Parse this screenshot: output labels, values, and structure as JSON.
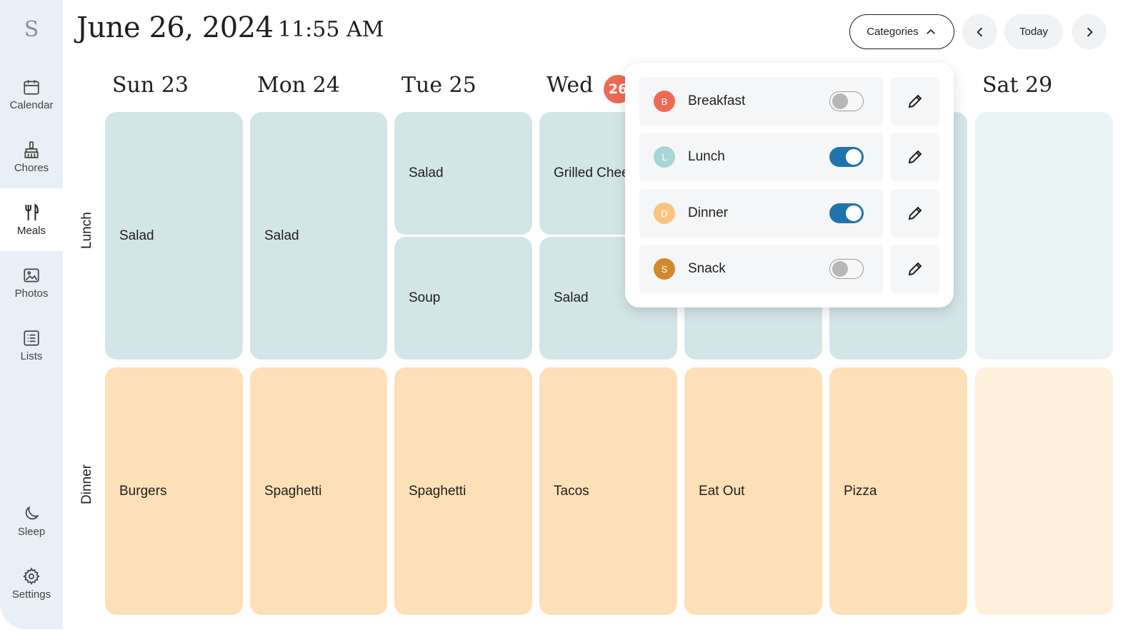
{
  "sidebar": {
    "logo": "S",
    "items": [
      {
        "label": "Calendar",
        "icon": "calendar-icon"
      },
      {
        "label": "Chores",
        "icon": "broom-icon"
      },
      {
        "label": "Meals",
        "icon": "fork-knife-icon",
        "active": true
      },
      {
        "label": "Photos",
        "icon": "image-icon"
      },
      {
        "label": "Lists",
        "icon": "list-icon"
      },
      {
        "label": "Sleep",
        "icon": "moon-icon"
      },
      {
        "label": "Settings",
        "icon": "gear-icon"
      }
    ]
  },
  "header": {
    "date": "June 26, 2024",
    "time": "11:55 AM",
    "categories_label": "Categories",
    "today_label": "Today"
  },
  "days": [
    {
      "label": "Sun 23"
    },
    {
      "label": "Mon 24"
    },
    {
      "label": "Tue 25"
    },
    {
      "label": "Wed",
      "badge": "26"
    },
    {
      "label": "Sat 29"
    }
  ],
  "rows": {
    "lunch_label": "Lunch",
    "dinner_label": "Dinner"
  },
  "meals": {
    "lunch": {
      "sun": "Salad",
      "mon": "Salad",
      "tue_1": "Salad",
      "tue_2": "Soup",
      "wed_1": "Grilled Cheese",
      "wed_2": "Salad"
    },
    "dinner": {
      "sun": "Burgers",
      "mon": "Spaghetti",
      "tue": "Spaghetti",
      "wed": "Tacos",
      "thu": "Eat Out",
      "fri": "Pizza"
    }
  },
  "categories": [
    {
      "initial": "B",
      "name": "Breakfast",
      "enabled": false,
      "color": "#ef6a55"
    },
    {
      "initial": "L",
      "name": "Lunch",
      "enabled": true,
      "color": "#a8d5d6"
    },
    {
      "initial": "D",
      "name": "Dinner",
      "enabled": true,
      "color": "#f9c57e"
    },
    {
      "initial": "S",
      "name": "Snack",
      "enabled": false,
      "color": "#d08a2c"
    }
  ],
  "colors": {
    "sidebar_bg": "#e8eff6",
    "lunch_card": "#d3e6e7",
    "dinner_card": "#fde0b7",
    "toggle_on": "#1f74ac",
    "today_badge": "#ef6a55"
  }
}
